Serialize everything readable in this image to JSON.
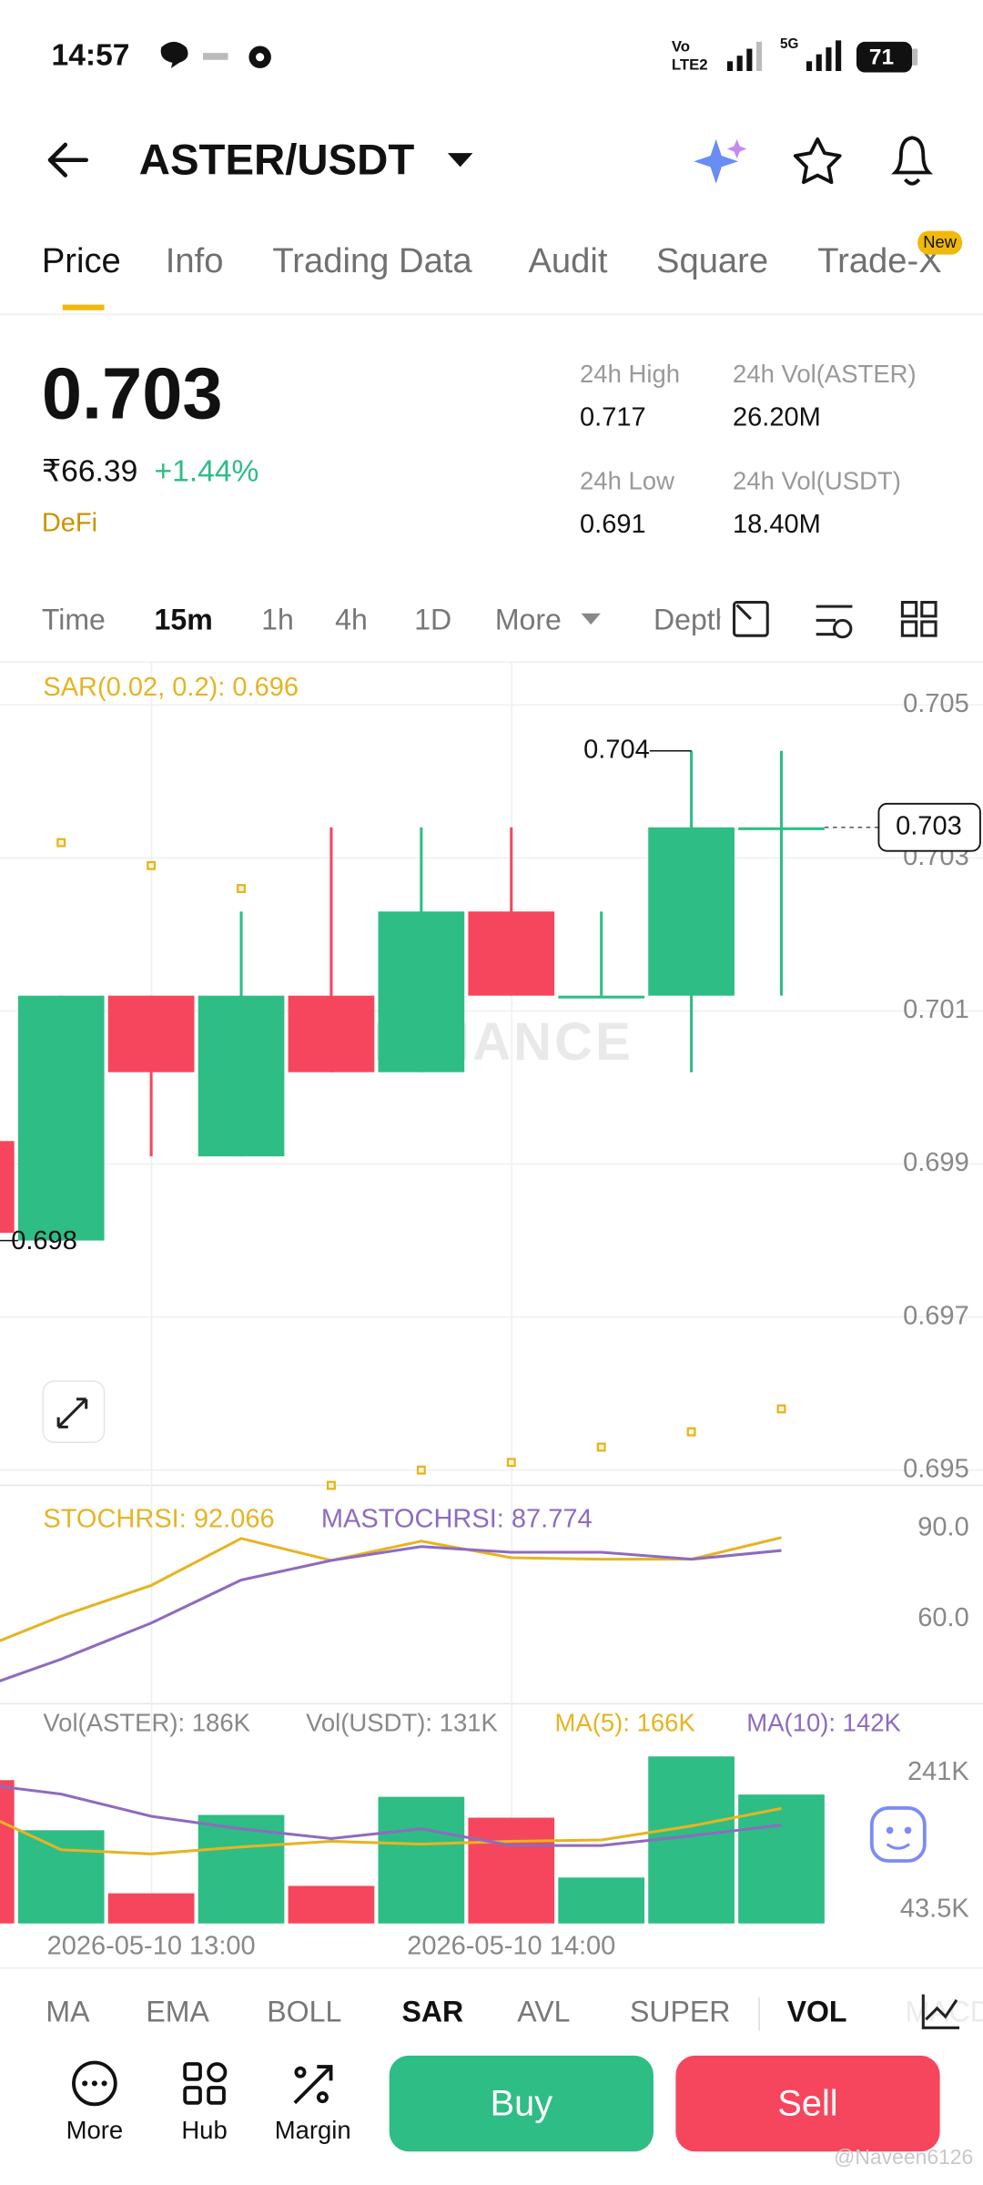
{
  "status_bar": {
    "time": "14:57",
    "volte": "Vo",
    "lte": "LTE2",
    "network": "5G",
    "battery": "71"
  },
  "header": {
    "pair": "ASTER/USDT"
  },
  "tabs": {
    "items": [
      "Price",
      "Info",
      "Trading Data",
      "Audit",
      "Square",
      "Trade-X"
    ],
    "active": 0,
    "badge": "New"
  },
  "ticker": {
    "price": "0.703",
    "fiat_price": "₹66.39",
    "change": "+1.44%",
    "tag": "DeFi",
    "stats": [
      [
        "24h High",
        "0.717"
      ],
      [
        "24h Vol(ASTER)",
        "26.20M"
      ],
      [
        "24h Low",
        "0.691"
      ],
      [
        "24h Vol(USDT)",
        "18.40M"
      ]
    ]
  },
  "intervals": {
    "items": [
      "Time",
      "15m",
      "1h",
      "4h",
      "1D",
      "More",
      "Depth"
    ],
    "active": 1
  },
  "chart_data": [
    {
      "type": "candlestick",
      "label": "SAR(0.02, 0.2): 0.696",
      "watermark": "BINANCE",
      "open": [
        0.6993,
        0.698,
        0.7012,
        0.6991,
        0.7012,
        0.7002,
        0.7023,
        0.7012,
        0.7012,
        0.7034
      ],
      "high": [
        0.6993,
        0.7012,
        0.7012,
        0.7023,
        0.7034,
        0.7034,
        0.7034,
        0.7023,
        0.7044,
        0.7044
      ],
      "low": [
        0.6981,
        0.698,
        0.6991,
        0.6991,
        0.7002,
        0.7002,
        0.7012,
        0.7012,
        0.7002,
        0.7012
      ],
      "close": [
        0.6981,
        0.7012,
        0.7002,
        0.7012,
        0.7002,
        0.7023,
        0.7012,
        0.7012,
        0.7034,
        0.7034
      ],
      "up_color": "#2ebd85",
      "down_color": "#f6465d",
      "sar": {
        "color": "#e6b422",
        "values": [
          null,
          0.7032,
          0.7029,
          0.7026,
          0.6948,
          0.695,
          0.6951,
          0.6953,
          0.6955,
          0.6958
        ]
      },
      "annotations": [
        {
          "label": "0.704",
          "value": 0.7044
        },
        {
          "label": "0.698",
          "value": 0.698
        }
      ],
      "last_price": {
        "label": "0.703",
        "value": 0.7034
      },
      "ylim": [
        0.6948,
        0.70556
      ],
      "yticks": [
        0.705,
        0.703,
        0.701,
        0.699,
        0.697,
        0.695
      ],
      "grid": true
    },
    {
      "type": "line",
      "series": [
        {
          "name": "STOCHRSI: 92.066",
          "color": "#e6b422",
          "values": [
            54.0,
            66.0,
            76.2,
            91.8,
            84.5,
            90.9,
            85.4,
            84.9,
            84.9,
            92.1
          ]
        },
        {
          "name": "MASTOCHRSI: 87.774",
          "color": "#8e6bbf",
          "values": [
            41.1,
            51.7,
            63.7,
            78.0,
            84.5,
            89.1,
            87.2,
            87.2,
            84.9,
            87.8
          ]
        }
      ],
      "ylim": [
        36.9,
        108.5
      ],
      "yticks": [
        {
          "value": 90,
          "label": "90.0"
        },
        {
          "value": 60,
          "label": "60.0"
        }
      ]
    },
    {
      "type": "bar",
      "categories": [
        null,
        null,
        "2026-05-10 13:00",
        null,
        null,
        null,
        "2026-05-10 14:00",
        null,
        null,
        null
      ],
      "series": [
        {
          "name": "Vol(ASTER): 186K",
          "color": "#888888",
          "values": [
            206800,
            134500,
            43500,
            156600,
            54200,
            182700,
            152600,
            66300,
            241000,
            186000
          ]
        },
        {
          "name": "MA(5): 166K",
          "type": "line",
          "color": "#e6b422",
          "values": [
            166700,
            106400,
            100400,
            110400,
            118500,
            114500,
            118500,
            120500,
            140600,
            166000
          ]
        },
        {
          "name": "MA(10): 142K",
          "type": "line",
          "color": "#8e6bbf",
          "values": [
            202800,
            186700,
            154600,
            136500,
            122500,
            136500,
            112400,
            112400,
            126500,
            142000
          ]
        }
      ],
      "extra_label": "Vol(USDT): 131K",
      "ylim": [
        0,
        311000
      ],
      "yticks": [
        {
          "value": 241000,
          "label": "241K"
        },
        {
          "value": 43500,
          "label": "43.5K"
        }
      ]
    }
  ],
  "indicators": {
    "items": [
      "MA",
      "EMA",
      "BOLL",
      "SAR",
      "AVL",
      "SUPER",
      "VOL",
      "MACD"
    ],
    "active": [
      3,
      6
    ]
  },
  "actions": {
    "items": [
      "More",
      "Hub",
      "Margin"
    ],
    "buy": "Buy",
    "sell": "Sell"
  },
  "watermark": "@Naveen6126"
}
